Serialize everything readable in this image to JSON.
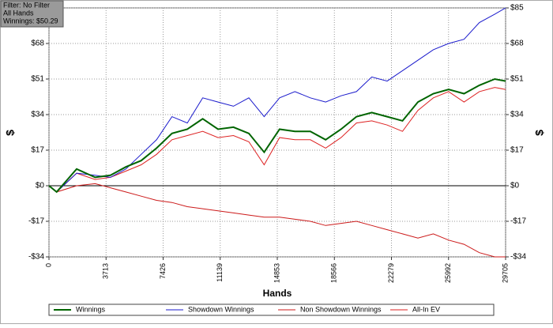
{
  "chart_data": {
    "type": "line",
    "info_box": [
      "Filter: No Filter",
      "All Hands",
      "Winnings: $50.29"
    ],
    "xlabel": "Hands",
    "ylabel": "$",
    "x": [
      0,
      500,
      1800,
      3000,
      4000,
      5000,
      6000,
      7000,
      8000,
      9000,
      10000,
      11000,
      12000,
      13000,
      14000,
      15000,
      16000,
      17000,
      18000,
      19000,
      20000,
      21000,
      22000,
      23000,
      24000,
      25000,
      26000,
      27000,
      28000,
      29000,
      29705
    ],
    "xlim": [
      0,
      29705
    ],
    "xticks": [
      0,
      3713,
      7426,
      11139,
      14853,
      18566,
      22279,
      25992,
      29705
    ],
    "ylim": [
      -34,
      85
    ],
    "yticks": [
      {
        "value": -34,
        "label": "-$34"
      },
      {
        "value": -17,
        "label": "-$17"
      },
      {
        "value": 0,
        "label": "$0"
      },
      {
        "value": 17,
        "label": "$17"
      },
      {
        "value": 34,
        "label": "$34"
      },
      {
        "value": 51,
        "label": "$51"
      },
      {
        "value": 68,
        "label": "$68"
      },
      {
        "value": 85,
        "label": "$85"
      }
    ],
    "grid": true,
    "series": [
      {
        "name": "Winnings",
        "color": "#006400",
        "values": [
          0,
          -3,
          8,
          4,
          5,
          9,
          12,
          18,
          25,
          27,
          32,
          27,
          28,
          25,
          16,
          27,
          26,
          26,
          22,
          27,
          33,
          35,
          33,
          31,
          40,
          44,
          46,
          44,
          48,
          51,
          50
        ]
      },
      {
        "name": "Showdown Winnings",
        "color": "#1a1acc",
        "values": [
          0,
          -3,
          6,
          5,
          4,
          8,
          15,
          22,
          33,
          30,
          42,
          40,
          38,
          42,
          33,
          42,
          45,
          42,
          40,
          43,
          45,
          52,
          50,
          55,
          60,
          65,
          68,
          70,
          78,
          82,
          85
        ]
      },
      {
        "name": "Non Showdown Winnings",
        "color": "#cc1a1a",
        "values": [
          0,
          -3,
          0,
          1,
          -1,
          -3,
          -5,
          -7,
          -8,
          -10,
          -11,
          -12,
          -13,
          -14,
          -15,
          -15,
          -16,
          -17,
          -19,
          -18,
          -17,
          -19,
          -21,
          -23,
          -25,
          -23,
          -26,
          -28,
          -32,
          -34,
          -34
        ]
      },
      {
        "name": "All-In EV",
        "color": "#dd2222",
        "values": [
          0,
          -3,
          6,
          3,
          4,
          7,
          10,
          15,
          22,
          24,
          26,
          23,
          24,
          21,
          10,
          23,
          22,
          22,
          18,
          23,
          30,
          31,
          29,
          26,
          36,
          42,
          45,
          40,
          45,
          47,
          46
        ]
      }
    ]
  }
}
